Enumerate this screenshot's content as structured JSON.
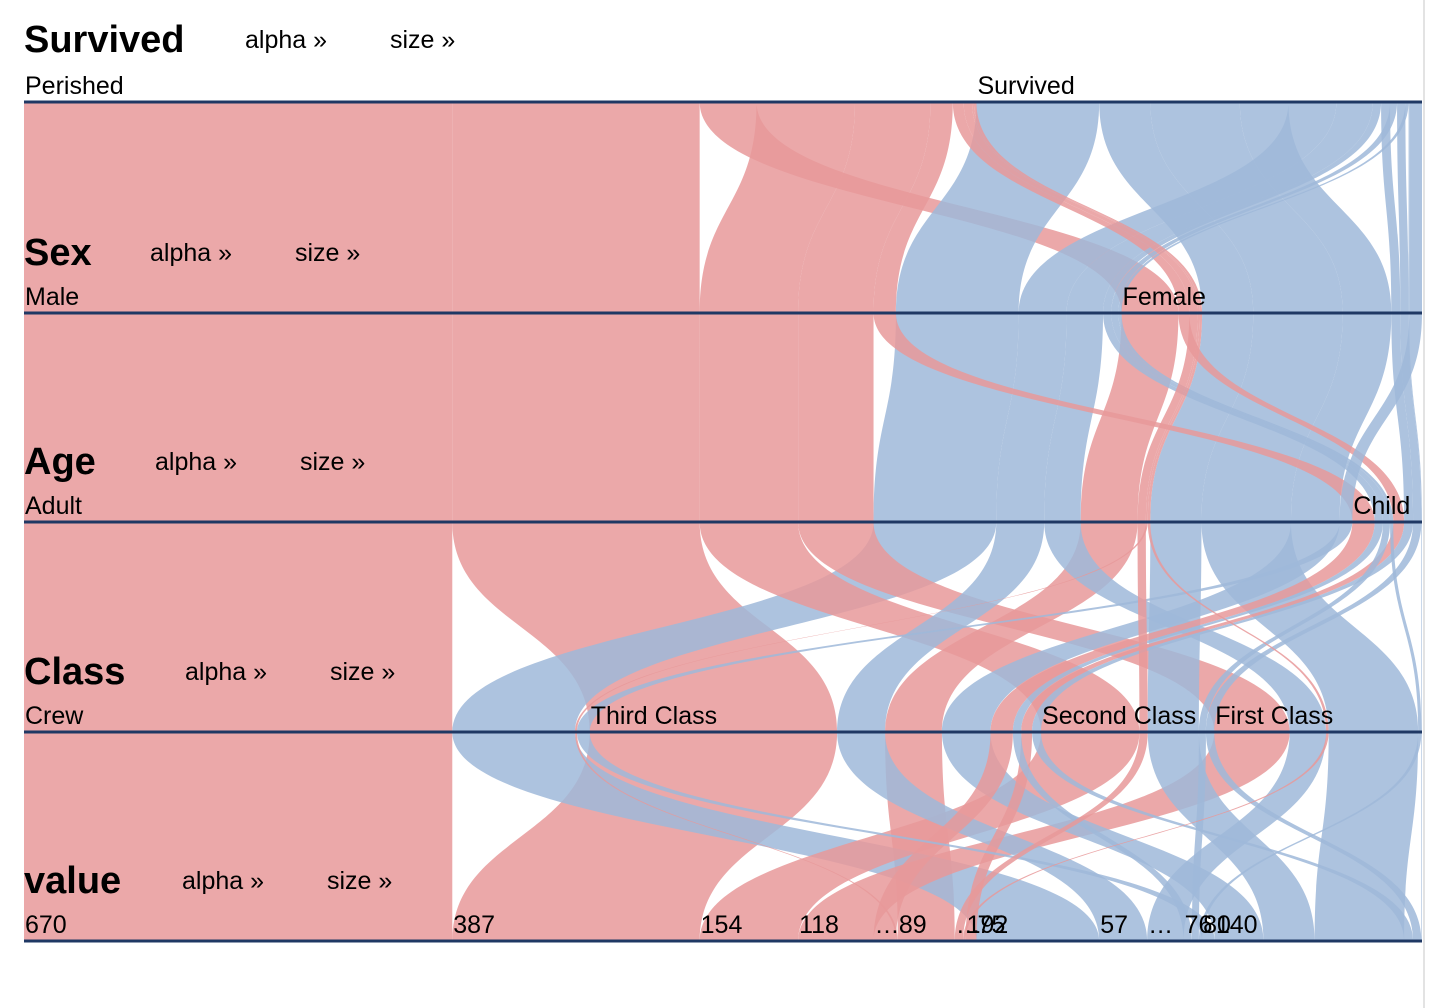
{
  "colors": {
    "Perished": "#e8999a",
    "Survived": "#9fb9d9",
    "axis": "#1f3864",
    "flow_opacity": 0.85
  },
  "sort_links": {
    "alpha": "alpha »",
    "size": "size »"
  },
  "dimensions": [
    {
      "name": "Survived",
      "categories": [
        "Perished",
        "Survived"
      ]
    },
    {
      "name": "Sex",
      "categories": [
        "Male",
        "Female"
      ]
    },
    {
      "name": "Age",
      "categories": [
        "Adult",
        "Child"
      ]
    },
    {
      "name": "Class",
      "categories": [
        "Crew",
        "Third Class",
        "Second Class",
        "First Class"
      ]
    },
    {
      "name": "value",
      "categories": [
        "670",
        "387",
        "154",
        "118",
        "…",
        "89",
        "…",
        "192",
        "75",
        "57",
        "…",
        "76",
        "80",
        "140"
      ]
    }
  ],
  "chart_data": {
    "type": "parallel-sets",
    "dimensions": [
      "Survived",
      "Sex",
      "Age",
      "Class",
      "value"
    ],
    "color_by": "Survived",
    "records": [
      {
        "Survived": "Perished",
        "Sex": "Male",
        "Age": "Adult",
        "Class": "Crew",
        "value": 670
      },
      {
        "Survived": "Perished",
        "Sex": "Male",
        "Age": "Adult",
        "Class": "Third Class",
        "value": 387
      },
      {
        "Survived": "Perished",
        "Sex": "Female",
        "Age": "Adult",
        "Class": "Third Class",
        "value": 89
      },
      {
        "Survived": "Survived",
        "Sex": "Male",
        "Age": "Adult",
        "Class": "Crew",
        "value": 192
      },
      {
        "Survived": "Perished",
        "Sex": "Male",
        "Age": "Adult",
        "Class": "Second Class",
        "value": 154
      },
      {
        "Survived": "Perished",
        "Sex": "Male",
        "Age": "Adult",
        "Class": "First Class",
        "value": 118
      },
      {
        "Survived": "Survived",
        "Sex": "Female",
        "Age": "Adult",
        "Class": "Second Class",
        "value": 80
      },
      {
        "Survived": "Survived",
        "Sex": "Female",
        "Age": "Adult",
        "Class": "First Class",
        "value": 140
      },
      {
        "Survived": "Survived",
        "Sex": "Female",
        "Age": "Adult",
        "Class": "Third Class",
        "value": 76
      },
      {
        "Survived": "Survived",
        "Sex": "Male",
        "Age": "Adult",
        "Class": "Third Class",
        "value": 75
      },
      {
        "Survived": "Survived",
        "Sex": "Male",
        "Age": "Adult",
        "Class": "First Class",
        "value": 57
      },
      {
        "Survived": "Perished",
        "Sex": "Male",
        "Age": "Child",
        "Class": "Third Class",
        "value": 35
      },
      {
        "Survived": "Perished",
        "Sex": "Female",
        "Age": "Child",
        "Class": "Third Class",
        "value": 17
      },
      {
        "Survived": "Survived",
        "Sex": "Male",
        "Age": "Child",
        "Class": "Third Class",
        "value": 13
      },
      {
        "Survived": "Survived",
        "Sex": "Female",
        "Age": "Child",
        "Class": "Third Class",
        "value": 14
      },
      {
        "Survived": "Survived",
        "Sex": "Male",
        "Age": "Child",
        "Class": "Second Class",
        "value": 11
      },
      {
        "Survived": "Survived",
        "Sex": "Female",
        "Age": "Child",
        "Class": "Second Class",
        "value": 13
      },
      {
        "Survived": "Survived",
        "Sex": "Male",
        "Age": "Child",
        "Class": "First Class",
        "value": 5
      },
      {
        "Survived": "Survived",
        "Sex": "Female",
        "Age": "Child",
        "Class": "First Class",
        "value": 1
      },
      {
        "Survived": "Survived",
        "Sex": "Female",
        "Age": "Adult",
        "Class": "Crew",
        "value": 20
      },
      {
        "Survived": "Perished",
        "Sex": "Female",
        "Age": "Adult",
        "Class": "Second Class",
        "value": 13
      },
      {
        "Survived": "Perished",
        "Sex": "Female",
        "Age": "Adult",
        "Class": "Crew",
        "value": 3
      },
      {
        "Survived": "Perished",
        "Sex": "Female",
        "Age": "Adult",
        "Class": "First Class",
        "value": 4
      }
    ]
  }
}
